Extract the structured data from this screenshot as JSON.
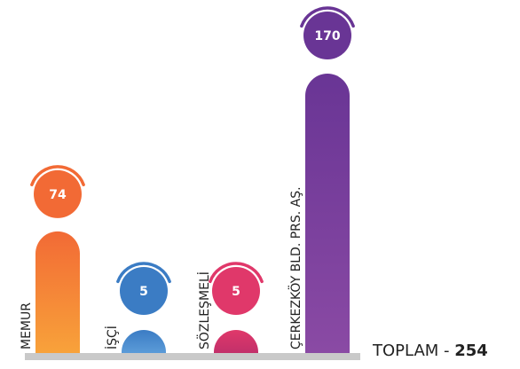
{
  "chart_data": {
    "type": "bar",
    "categories": [
      "MEMUR",
      "İŞÇİ",
      "SÖZLEŞMELİ",
      "ÇERKEZKÖY BLD. PRS. AŞ."
    ],
    "values": [
      74,
      5,
      5,
      170
    ],
    "value_labels": [
      "74",
      "5",
      "5",
      "170"
    ],
    "colors": [
      {
        "top": "#f26a35",
        "bottom": "#f8a23a"
      },
      {
        "top": "#3b7cc4",
        "bottom": "#5b9bd8"
      },
      {
        "top": "#e0386a",
        "bottom": "#c2306a"
      },
      {
        "top": "#693595",
        "bottom": "#8a4aa4"
      }
    ],
    "ylim": [
      0,
      170
    ],
    "title": "",
    "xlabel": "",
    "ylabel": ""
  },
  "total": {
    "label": "TOPLAM - ",
    "value": "254"
  }
}
